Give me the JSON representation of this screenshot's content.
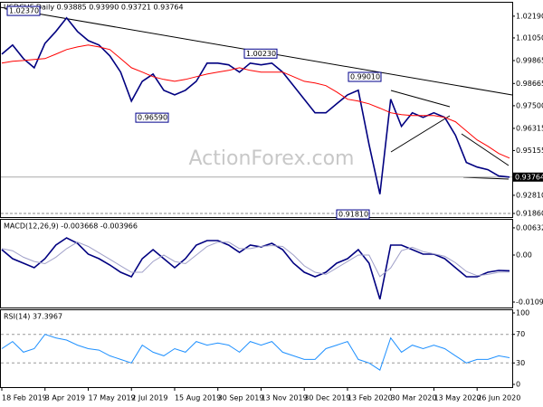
{
  "chart_data": [
    {
      "type": "line",
      "title": "USDCHF,Daily  0.93885 0.93990 0.93721 0.93764",
      "watermark": "ActionForex.com",
      "categories": [
        "18 Feb 2019",
        null,
        null,
        null,
        "3 Apr 2019",
        null,
        null,
        null,
        "17 May 2019",
        null,
        null,
        null,
        "2 Jul 2019",
        null,
        null,
        null,
        "15 Aug 2019",
        null,
        null,
        null,
        "30 Sep 2019",
        null,
        null,
        null,
        "13 Nov 2019",
        null,
        null,
        null,
        "30 Dec 2019",
        null,
        null,
        null,
        "13 Feb 2020",
        null,
        null,
        null,
        "30 Mar 2020",
        null,
        null,
        null,
        "13 May 2020",
        null,
        null,
        null,
        "26 Jun 2020",
        null,
        null,
        null
      ],
      "series": [
        {
          "color": "#000080",
          "values": [
            1.002,
            1.0068,
            0.9997,
            0.9949,
            1.0077,
            1.0139,
            1.021,
            1.0139,
            1.0091,
            1.0068,
            1.0011,
            0.9926,
            0.9774,
            0.9878,
            0.9916,
            0.9831,
            0.9807,
            0.9831,
            0.9878,
            0.9973,
            0.9973,
            0.9964,
            0.9926,
            0.9973,
            0.9964,
            0.9973,
            0.9926,
            0.9855,
            0.9784,
            0.9713,
            0.9713,
            0.976,
            0.9807,
            0.9831,
            0.9547,
            0.9287,
            0.9784,
            0.9642,
            0.9713,
            0.9689,
            0.9713,
            0.9689,
            0.9595,
            0.9453,
            0.9429,
            0.9415,
            0.9382,
            0.93764
          ]
        },
        {
          "color": "#ff0000",
          "values": [
            0.9973,
            0.9983,
            0.9987,
            0.9992,
            0.9997,
            1.002,
            1.0044,
            1.0058,
            1.0068,
            1.0058,
            1.0044,
            0.9997,
            0.9949,
            0.9926,
            0.9902,
            0.9888,
            0.9878,
            0.9888,
            0.9902,
            0.9916,
            0.9926,
            0.9935,
            0.9949,
            0.9935,
            0.9926,
            0.9926,
            0.9926,
            0.9902,
            0.9878,
            0.9869,
            0.9855,
            0.9822,
            0.9784,
            0.9774,
            0.976,
            0.9737,
            0.9713,
            0.9703,
            0.9699,
            0.9699,
            0.9699,
            0.9689,
            0.9666,
            0.9618,
            0.9571,
            0.9538,
            0.95,
            0.9476
          ]
        }
      ],
      "annotations": [
        {
          "label": "1.02370",
          "value": 1.0237
        },
        {
          "label": "0.96590",
          "value": 0.9659
        },
        {
          "label": "1.00230",
          "value": 1.0023
        },
        {
          "label": "0.99010",
          "value": 0.9901
        },
        {
          "label": "0.91810",
          "value": 0.9181
        }
      ],
      "last_price": {
        "value": 0.93764,
        "label": "0.93764"
      },
      "support": 0.9186,
      "ylim": [
        0.9167,
        1.028
      ],
      "yticks": [
        {
          "value": 1.0219,
          "label": "1.02190"
        },
        {
          "value": 1.0105,
          "label": "1.01050"
        },
        {
          "value": 0.99865,
          "label": "0.99865"
        },
        {
          "value": 0.98665,
          "label": "0.98665"
        },
        {
          "value": 0.975,
          "label": "0.97500"
        },
        {
          "value": 0.96315,
          "label": "0.96315"
        },
        {
          "value": 0.95155,
          "label": "0.95155"
        },
        {
          "value": 0.9281,
          "label": "0.92810"
        },
        {
          "value": 0.9186,
          "label": "0.91860"
        }
      ]
    },
    {
      "type": "line",
      "title": "MACD(12,26,9) -0.003668 -0.003966",
      "series": [
        {
          "color": "#000080",
          "values": [
            0.00126,
            -0.00084,
            -0.00189,
            -0.00294,
            -0.00084,
            0.00231,
            0.00399,
            0.00273,
            0.00021,
            -0.00084,
            -0.00231,
            -0.00399,
            -0.00504,
            -0.00084,
            0.00126,
            -0.00084,
            -0.00294,
            -0.00084,
            0.00231,
            0.00336,
            0.00336,
            0.00231,
            0.00063,
            0.00231,
            0.00189,
            0.00273,
            0.00126,
            -0.00189,
            -0.00399,
            -0.00504,
            -0.00399,
            -0.00189,
            -0.00084,
            0.00126,
            -0.00189,
            -0.01029,
            0.00231,
            0.00231,
            0.00126,
            0.00021,
            0.00021,
            -0.00084,
            -0.00294,
            -0.00504,
            -0.00504,
            -0.00399,
            -0.00357,
            -0.003668
          ]
        },
        {
          "color": "#a0a0c8",
          "values": [
            0.0015,
            0.001,
            -0.0005,
            -0.0015,
            -0.002,
            -0.0005,
            0.0015,
            0.003,
            0.002,
            0.0005,
            -0.001,
            -0.0025,
            -0.004,
            -0.004,
            -0.0015,
            0.0,
            -0.0015,
            -0.002,
            0.0,
            0.002,
            0.003,
            0.003,
            0.0015,
            0.0015,
            0.002,
            0.0022,
            0.002,
            0.0,
            -0.0025,
            -0.004,
            -0.0045,
            -0.003,
            -0.0015,
            0.0,
            0.0,
            -0.005,
            -0.003,
            0.001,
            0.0018,
            0.0008,
            0.0003,
            -0.0003,
            -0.0018,
            -0.0038,
            -0.0048,
            -0.0045,
            -0.004,
            -0.003966
          ]
        }
      ],
      "ylim": [
        -0.0122,
        0.0082
      ],
      "yticks": [
        0.006321,
        {
          "value": 0,
          "label": "0.00"
        },
        -0.010939
      ]
    },
    {
      "type": "line",
      "title": "RSI(14) 37.3967",
      "series": [
        {
          "color": "#1e90ff",
          "values": [
            50,
            60,
            45,
            50,
            70,
            65,
            62,
            55,
            50,
            48,
            40,
            35,
            30,
            55,
            45,
            40,
            50,
            45,
            60,
            55,
            58,
            55,
            45,
            60,
            55,
            60,
            45,
            40,
            35,
            35,
            50,
            55,
            60,
            35,
            30,
            20,
            65,
            45,
            55,
            50,
            55,
            50,
            40,
            30,
            35,
            35,
            40,
            37.3967
          ]
        }
      ],
      "levels": [
        70,
        30
      ],
      "ylim": [
        0,
        100
      ],
      "yticks": [
        100,
        70,
        30,
        0
      ]
    }
  ]
}
